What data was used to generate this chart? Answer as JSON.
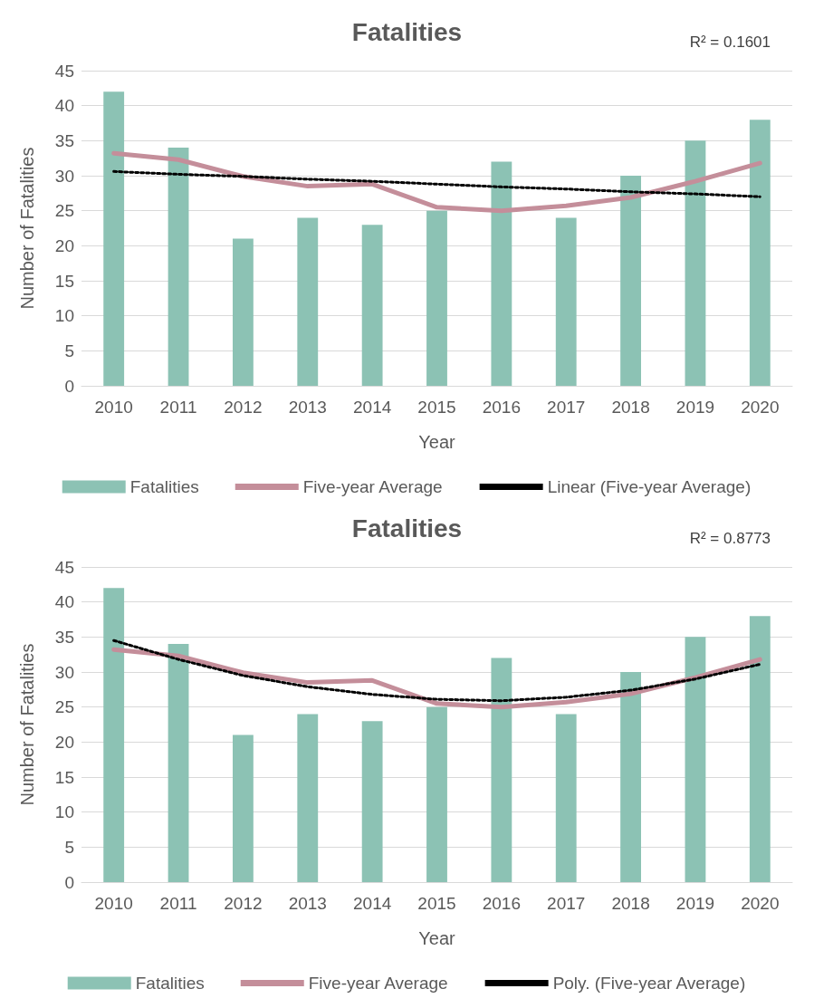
{
  "chart_data": [
    {
      "type": "bar",
      "title": "Fatalities",
      "xlabel": "Year",
      "ylabel": "Number of Fatalities",
      "annotations": [
        "R² = 0.1601"
      ],
      "categories": [
        "2010",
        "2011",
        "2012",
        "2013",
        "2014",
        "2015",
        "2016",
        "2017",
        "2018",
        "2019",
        "2020"
      ],
      "ylim": [
        0,
        45
      ],
      "yticks": [
        0,
        5,
        10,
        15,
        20,
        25,
        30,
        35,
        40,
        45
      ],
      "grid": "y",
      "legend": "bottom",
      "marker": "none",
      "series": [
        {
          "name": "Fatalities",
          "color": "#8cc2b4",
          "values": [
            42,
            34,
            21,
            24,
            23,
            25,
            32,
            24,
            30,
            35,
            38
          ]
        },
        {
          "name": "Five-year Average",
          "type": "line",
          "color": "#c48e9a",
          "line_style": "solid",
          "values": [
            33.2,
            32.3,
            29.9,
            28.5,
            28.8,
            25.5,
            25.0,
            25.7,
            26.9,
            29.2,
            31.8
          ]
        },
        {
          "name": "Linear (Five-year Average)",
          "type": "line",
          "color": "#000000",
          "line_style": "dotted",
          "values": [
            30.6,
            30.2,
            29.9,
            29.5,
            29.2,
            28.8,
            28.4,
            28.1,
            27.7,
            27.4,
            27.0
          ]
        }
      ]
    },
    {
      "type": "bar",
      "title": "Fatalities",
      "xlabel": "Year",
      "ylabel": "Number of Fatalities",
      "annotations": [
        "R² = 0.8773"
      ],
      "categories": [
        "2010",
        "2011",
        "2012",
        "2013",
        "2014",
        "2015",
        "2016",
        "2017",
        "2018",
        "2019",
        "2020"
      ],
      "ylim": [
        0,
        45
      ],
      "yticks": [
        0,
        5,
        10,
        15,
        20,
        25,
        30,
        35,
        40,
        45
      ],
      "grid": "y",
      "legend": "bottom",
      "marker": "none",
      "series": [
        {
          "name": "Fatalities",
          "color": "#8cc2b4",
          "values": [
            42,
            34,
            21,
            24,
            23,
            25,
            32,
            24,
            30,
            35,
            38
          ]
        },
        {
          "name": "Five-year Average",
          "type": "line",
          "color": "#c48e9a",
          "line_style": "solid",
          "values": [
            33.2,
            32.3,
            29.9,
            28.5,
            28.8,
            25.5,
            25.0,
            25.7,
            26.9,
            29.2,
            31.8
          ]
        },
        {
          "name": "Poly. (Five-year Average)",
          "type": "line",
          "color": "#000000",
          "line_style": "dotted",
          "values": [
            34.5,
            31.8,
            29.5,
            27.9,
            26.8,
            26.1,
            25.9,
            26.4,
            27.4,
            29.0,
            31.1
          ]
        }
      ]
    }
  ]
}
